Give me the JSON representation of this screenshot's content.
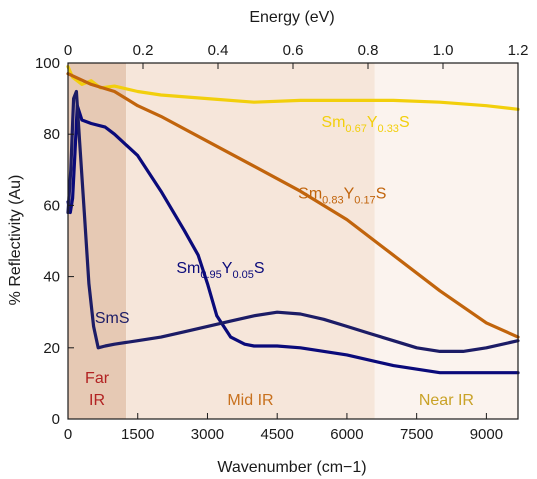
{
  "chart_data": {
    "type": "line",
    "xlabel": "Wavenumber (cm−1)",
    "ylabel": "% Reflectivity (Au)",
    "x2label": "Energy (eV)",
    "xlim": [
      0,
      9680
    ],
    "ylim": [
      0,
      100
    ],
    "x2lim": [
      0,
      1.2
    ],
    "xticks": [
      0,
      1500,
      3000,
      4500,
      6000,
      7500,
      9000
    ],
    "xtick_labels": [
      "0",
      "1500",
      "3000",
      "4500",
      "6000",
      "7500",
      "9000"
    ],
    "yticks": [
      0,
      20,
      40,
      60,
      80,
      100
    ],
    "ytick_labels": [
      "0",
      "20",
      "40",
      "60",
      "80",
      "100"
    ],
    "x2ticks": [
      0,
      0.2,
      0.4,
      0.6,
      0.8,
      1.0,
      1.2
    ],
    "x2tick_labels": [
      "0",
      "0.2",
      "0.4",
      "0.6",
      "0.8",
      "1.0",
      "1.2"
    ],
    "grid": false,
    "legend": "none",
    "regions": [
      {
        "label_lines": [
          "Far",
          "IR"
        ],
        "x_range": [
          0,
          1250
        ],
        "color": "#e6c9b4",
        "text_color": "#b22222"
      },
      {
        "label_lines": [
          "Mid IR"
        ],
        "x_range": [
          1250,
          6600
        ],
        "color": "#f6e6da",
        "text_color": "#c8711e"
      },
      {
        "label_lines": [
          "Near IR"
        ],
        "x_range": [
          6600,
          9680
        ],
        "color": "#fbf3ee",
        "text_color": "#c9a227"
      }
    ],
    "series": [
      {
        "color": "#f2cf0c",
        "label": {
          "base": "Sm",
          "sub1": "0.67",
          "mid": "Y",
          "sub2": "0.33",
          "end": "S"
        },
        "label_at": [
          6400,
          82
        ],
        "x": [
          0,
          100,
          300,
          500,
          700,
          1000,
          1500,
          2000,
          3000,
          4000,
          5000,
          6000,
          7000,
          8000,
          9000,
          9680
        ],
        "y": [
          99,
          96,
          94,
          95,
          93,
          93.5,
          92,
          91,
          90,
          89,
          89.5,
          89.5,
          89.5,
          89,
          88,
          87
        ]
      },
      {
        "color": "#c1640c",
        "label": {
          "base": "Sm",
          "sub1": "0.83",
          "mid": "Y",
          "sub2": "0.17",
          "end": "S"
        },
        "label_at": [
          5900,
          62
        ],
        "x": [
          0,
          500,
          1000,
          1500,
          2000,
          3000,
          4000,
          5000,
          6000,
          7000,
          8000,
          9000,
          9680
        ],
        "y": [
          97,
          94,
          92,
          88,
          85,
          78,
          71,
          64,
          56,
          46,
          36,
          27,
          23
        ]
      },
      {
        "color": "#0a0a7a",
        "label": {
          "base": "Sm",
          "sub1": "0.95",
          "mid": "Y",
          "sub2": "0.05",
          "end": "S"
        },
        "label_at": [
          3280,
          41
        ],
        "x": [
          0,
          50,
          100,
          150,
          200,
          300,
          500,
          800,
          1000,
          1500,
          2000,
          2500,
          2800,
          3000,
          3200,
          3500,
          3800,
          4000,
          4500,
          5000,
          6000,
          7000,
          8000,
          9000,
          9680
        ],
        "y": [
          61,
          58,
          62,
          75,
          88,
          84,
          83,
          82,
          80,
          74,
          64,
          53,
          46,
          38,
          29,
          23,
          21,
          20.5,
          20.5,
          20,
          18,
          15,
          13,
          13,
          13
        ]
      },
      {
        "color": "#1c1c66",
        "label": {
          "base": "SmS",
          "sub1": "",
          "mid": "",
          "sub2": "",
          "end": ""
        },
        "label_at": [
          950,
          27
        ],
        "x": [
          0,
          60,
          120,
          180,
          250,
          350,
          450,
          550,
          650,
          800,
          1000,
          1500,
          2000,
          2500,
          3000,
          3500,
          4000,
          4500,
          5000,
          5500,
          6000,
          6500,
          7000,
          7500,
          8000,
          8500,
          9000,
          9680
        ],
        "y": [
          58,
          70,
          90,
          92,
          78,
          58,
          38,
          26,
          20,
          20.5,
          21,
          22,
          23,
          24.5,
          26,
          27.5,
          29,
          30,
          29.5,
          28,
          26,
          24,
          22,
          20,
          19,
          19,
          20,
          22
        ]
      }
    ]
  }
}
